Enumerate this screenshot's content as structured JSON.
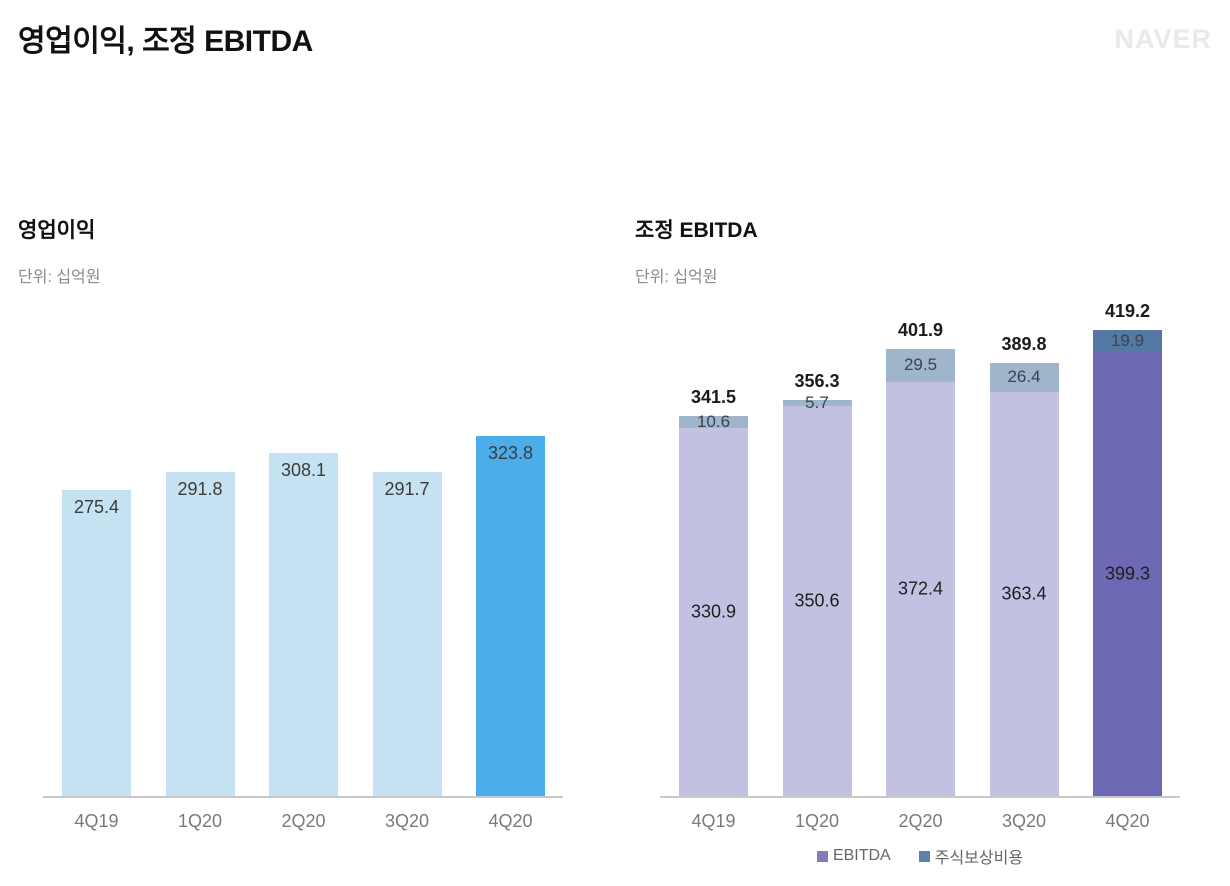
{
  "header": {
    "title": "영업이익, 조정 EBITDA",
    "logo": "NAVER"
  },
  "chart_data": [
    {
      "type": "bar",
      "title": "영업이익",
      "unit_label": "단위: 십억원",
      "categories": [
        "4Q19",
        "1Q20",
        "2Q20",
        "3Q20",
        "4Q20"
      ],
      "values": [
        275.4,
        291.8,
        308.1,
        291.7,
        323.8
      ],
      "highlight_index": 4,
      "ylim": [
        0,
        450
      ],
      "grid": false,
      "legend_position": "none",
      "colors": {
        "bar": "#c5e2f2",
        "highlight": "#4badea"
      }
    },
    {
      "type": "stacked-bar",
      "title": "조정 EBITDA",
      "unit_label": "단위: 십억원",
      "categories": [
        "4Q19",
        "1Q20",
        "2Q20",
        "3Q20",
        "4Q20"
      ],
      "series": [
        {
          "name": "EBITDA",
          "values": [
            330.9,
            350.6,
            372.4,
            363.4,
            399.3
          ],
          "color": "#c3c1e1",
          "highlight_color": "#6e69b3",
          "legend_color": "#827cbd"
        },
        {
          "name": "주식보상비용",
          "values": [
            10.6,
            5.7,
            29.5,
            26.4,
            19.9
          ],
          "color": "#9fb5ca",
          "highlight_color": "#5479a3",
          "legend_color": "#5d81a9"
        }
      ],
      "totals": [
        341.5,
        356.3,
        401.9,
        389.8,
        419.2
      ],
      "highlight_index": 4,
      "ylim": [
        0,
        450
      ],
      "grid": false,
      "legend_position": "bottom"
    }
  ]
}
